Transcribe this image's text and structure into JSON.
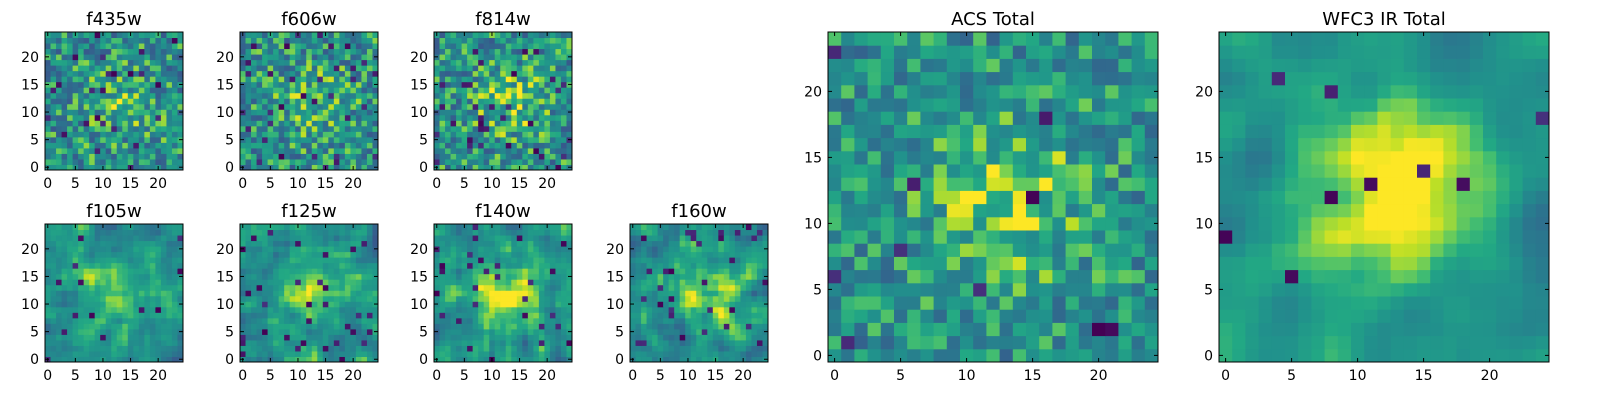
{
  "colors": {
    "low": "#440154",
    "mid_low": "#31688e",
    "mid": "#35b779",
    "high": "#fde725"
  },
  "chart_data": [
    {
      "type": "heatmap",
      "title": "f435w",
      "xticks": [
        "0",
        "5",
        "10",
        "15",
        "20"
      ],
      "yticks": [
        "0",
        "5",
        "10",
        "15",
        "20"
      ],
      "xlim": [
        0,
        25
      ],
      "ylim": [
        0,
        25
      ],
      "grid": false,
      "colormap": "viridis",
      "pixels": 25,
      "center_brightness": 0.15,
      "noise": 0.55,
      "smooth": 0,
      "dark_fraction": 0.04,
      "seed": 11
    },
    {
      "type": "heatmap",
      "title": "f606w",
      "xticks": [
        "0",
        "5",
        "10",
        "15",
        "20"
      ],
      "yticks": [
        "0",
        "5",
        "10",
        "15",
        "20"
      ],
      "xlim": [
        0,
        25
      ],
      "ylim": [
        0,
        25
      ],
      "grid": false,
      "colormap": "viridis",
      "pixels": 25,
      "center_brightness": 0.15,
      "noise": 0.55,
      "smooth": 0,
      "dark_fraction": 0.05,
      "seed": 23
    },
    {
      "type": "heatmap",
      "title": "f814w",
      "xticks": [
        "0",
        "5",
        "10",
        "15",
        "20"
      ],
      "yticks": [
        "0",
        "5",
        "10",
        "15",
        "20"
      ],
      "xlim": [
        0,
        25
      ],
      "ylim": [
        0,
        25
      ],
      "grid": false,
      "colormap": "viridis",
      "pixels": 25,
      "center_brightness": 0.2,
      "noise": 0.55,
      "smooth": 0,
      "dark_fraction": 0.05,
      "seed": 37
    },
    {
      "type": "heatmap",
      "title": "f105w",
      "xticks": [
        "0",
        "5",
        "10",
        "15",
        "20"
      ],
      "yticks": [
        "0",
        "5",
        "10",
        "15",
        "20"
      ],
      "xlim": [
        0,
        25
      ],
      "ylim": [
        0,
        25
      ],
      "grid": false,
      "colormap": "viridis",
      "pixels": 25,
      "center_brightness": 0.25,
      "noise": 0.5,
      "smooth": 1,
      "dark_fraction": 0.03,
      "seed": 41
    },
    {
      "type": "heatmap",
      "title": "f125w",
      "xticks": [
        "0",
        "5",
        "10",
        "15",
        "20"
      ],
      "yticks": [
        "0",
        "5",
        "10",
        "15",
        "20"
      ],
      "xlim": [
        0,
        25
      ],
      "ylim": [
        0,
        25
      ],
      "grid": false,
      "colormap": "viridis",
      "pixels": 25,
      "center_brightness": 0.25,
      "noise": 0.55,
      "smooth": 1,
      "dark_fraction": 0.04,
      "seed": 53
    },
    {
      "type": "heatmap",
      "title": "f140w",
      "xticks": [
        "0",
        "5",
        "10",
        "15",
        "20"
      ],
      "yticks": [
        "0",
        "5",
        "10",
        "15",
        "20"
      ],
      "xlim": [
        0,
        25
      ],
      "ylim": [
        0,
        25
      ],
      "grid": false,
      "colormap": "viridis",
      "pixels": 25,
      "center_brightness": 0.3,
      "noise": 0.5,
      "smooth": 1,
      "dark_fraction": 0.04,
      "seed": 67
    },
    {
      "type": "heatmap",
      "title": "f160w",
      "xticks": [
        "0",
        "5",
        "10",
        "15",
        "20"
      ],
      "yticks": [
        "0",
        "5",
        "10",
        "15",
        "20"
      ],
      "xlim": [
        0,
        25
      ],
      "ylim": [
        0,
        25
      ],
      "grid": false,
      "colormap": "viridis",
      "pixels": 25,
      "center_brightness": 0.3,
      "noise": 0.5,
      "smooth": 1,
      "dark_fraction": 0.05,
      "seed": 79
    },
    {
      "type": "heatmap",
      "title": "ACS Total",
      "xticks": [
        "0",
        "5",
        "10",
        "15",
        "20"
      ],
      "yticks": [
        "0",
        "5",
        "10",
        "15",
        "20"
      ],
      "xlim": [
        0,
        25
      ],
      "ylim": [
        0,
        25
      ],
      "grid": false,
      "colormap": "viridis",
      "pixels": 25,
      "center_brightness": 0.25,
      "noise": 0.45,
      "smooth": 0,
      "dark_fraction": 0.015,
      "seed": 97
    },
    {
      "type": "heatmap",
      "title": "WFC3 IR Total",
      "xticks": [
        "0",
        "5",
        "10",
        "15",
        "20"
      ],
      "yticks": [
        "0",
        "5",
        "10",
        "15",
        "20"
      ],
      "xlim": [
        0,
        25
      ],
      "ylim": [
        0,
        25
      ],
      "grid": false,
      "colormap": "viridis",
      "pixels": 25,
      "center_brightness": 0.45,
      "noise": 0.35,
      "smooth": 2,
      "dark_fraction": 0.02,
      "seed": 113
    }
  ]
}
